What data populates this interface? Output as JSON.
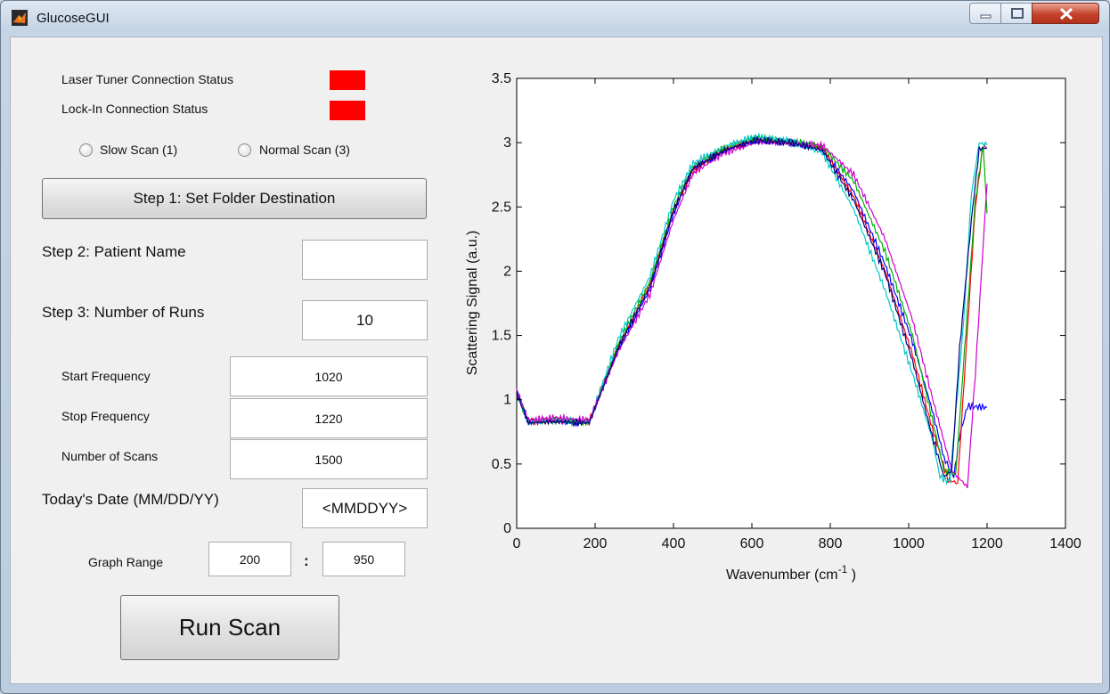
{
  "window": {
    "title": "GlucoseGUI",
    "controls": [
      "minimize-icon",
      "maximize-icon",
      "close-icon"
    ]
  },
  "status": {
    "laser_label": "Laser Tuner Connection Status",
    "lockin_label": "Lock-In Connection Status",
    "laser_color": "#ff0000",
    "lockin_color": "#ff0000"
  },
  "scan_mode": {
    "options": [
      "Slow Scan (1)",
      "Normal Scan (3)"
    ],
    "selected": null
  },
  "steps": {
    "step1_button": "Step 1: Set Folder Destination",
    "step2_label": "Step 2: Patient Name",
    "step2_value": "",
    "step3_label": "Step 3: Number of Runs",
    "step3_value": "10"
  },
  "params": {
    "start_label": "Start Frequency",
    "start_value": "1020",
    "stop_label": "Stop Frequency",
    "stop_value": "1220",
    "scans_label": "Number of Scans",
    "scans_value": "1500"
  },
  "date": {
    "label": "Today's Date (MM/DD/YY)",
    "value": "<MMDDYY>"
  },
  "range": {
    "label": "Graph Range",
    "from": "200",
    "separator": ":",
    "to": "950"
  },
  "run_button": "Run Scan",
  "chart_data": {
    "type": "line",
    "xlabel": "Wavenumber (cm-1 )",
    "xlabel_base": "Wavenumber (cm",
    "xlabel_sup": "-1",
    "xlabel_tail": " )",
    "ylabel": "Scattering Signal (a.u.)",
    "xlim": [
      0,
      1400
    ],
    "ylim": [
      0,
      3.5
    ],
    "xticks": [
      0,
      200,
      400,
      600,
      800,
      1000,
      1200,
      1400
    ],
    "yticks": [
      0,
      0.5,
      1,
      1.5,
      2,
      2.5,
      3,
      3.5
    ],
    "ytick_labels": [
      "0",
      "0.5",
      "1",
      "1.5",
      "2",
      "2.5",
      "3",
      "3.5"
    ],
    "series": [
      {
        "color": "#0000ff",
        "points": [
          [
            0,
            1.08
          ],
          [
            30,
            0.82
          ],
          [
            100,
            0.83
          ],
          [
            185,
            0.82
          ],
          [
            260,
            1.4
          ],
          [
            340,
            1.86
          ],
          [
            400,
            2.45
          ],
          [
            450,
            2.8
          ],
          [
            530,
            2.94
          ],
          [
            610,
            3.02
          ],
          [
            700,
            3.0
          ],
          [
            780,
            2.95
          ],
          [
            860,
            2.62
          ],
          [
            940,
            2.05
          ],
          [
            1010,
            1.45
          ],
          [
            1060,
            0.92
          ],
          [
            1090,
            0.55
          ],
          [
            1115,
            0.4
          ],
          [
            1130,
            0.72
          ],
          [
            1150,
            0.95
          ],
          [
            1200,
            0.94
          ]
        ]
      },
      {
        "color": "#ff0000",
        "points": [
          [
            0,
            1.05
          ],
          [
            30,
            0.83
          ],
          [
            100,
            0.84
          ],
          [
            185,
            0.83
          ],
          [
            260,
            1.42
          ],
          [
            340,
            1.9
          ],
          [
            400,
            2.48
          ],
          [
            450,
            2.78
          ],
          [
            530,
            2.95
          ],
          [
            610,
            3.03
          ],
          [
            700,
            3.0
          ],
          [
            780,
            2.96
          ],
          [
            860,
            2.58
          ],
          [
            940,
            2.0
          ],
          [
            1010,
            1.35
          ],
          [
            1060,
            0.78
          ],
          [
            1100,
            0.38
          ],
          [
            1125,
            0.35
          ],
          [
            1150,
            1.55
          ],
          [
            1170,
            2.5
          ],
          [
            1190,
            2.98
          ],
          [
            1200,
            2.96
          ]
        ]
      },
      {
        "color": "#00b000",
        "points": [
          [
            0,
            1.06
          ],
          [
            30,
            0.82
          ],
          [
            100,
            0.84
          ],
          [
            185,
            0.82
          ],
          [
            260,
            1.44
          ],
          [
            340,
            1.92
          ],
          [
            400,
            2.5
          ],
          [
            450,
            2.82
          ],
          [
            530,
            2.96
          ],
          [
            610,
            3.04
          ],
          [
            700,
            3.01
          ],
          [
            780,
            2.97
          ],
          [
            860,
            2.7
          ],
          [
            940,
            2.15
          ],
          [
            1010,
            1.5
          ],
          [
            1060,
            0.85
          ],
          [
            1090,
            0.45
          ],
          [
            1120,
            0.42
          ],
          [
            1150,
            1.7
          ],
          [
            1170,
            2.55
          ],
          [
            1190,
            2.98
          ],
          [
            1200,
            2.45
          ]
        ]
      },
      {
        "color": "#00c8c8",
        "points": [
          [
            0,
            1.04
          ],
          [
            30,
            0.83
          ],
          [
            100,
            0.85
          ],
          [
            185,
            0.83
          ],
          [
            260,
            1.48
          ],
          [
            340,
            1.96
          ],
          [
            400,
            2.55
          ],
          [
            450,
            2.84
          ],
          [
            530,
            2.97
          ],
          [
            610,
            3.05
          ],
          [
            700,
            3.01
          ],
          [
            780,
            2.92
          ],
          [
            860,
            2.48
          ],
          [
            940,
            1.85
          ],
          [
            1010,
            1.2
          ],
          [
            1060,
            0.7
          ],
          [
            1080,
            0.4
          ],
          [
            1105,
            0.36
          ],
          [
            1140,
            1.6
          ],
          [
            1160,
            2.6
          ],
          [
            1180,
            3.0
          ],
          [
            1200,
            2.98
          ]
        ]
      },
      {
        "color": "#d000d0",
        "points": [
          [
            0,
            1.07
          ],
          [
            30,
            0.84
          ],
          [
            100,
            0.86
          ],
          [
            185,
            0.84
          ],
          [
            260,
            1.38
          ],
          [
            340,
            1.82
          ],
          [
            400,
            2.4
          ],
          [
            450,
            2.76
          ],
          [
            530,
            2.92
          ],
          [
            610,
            3.0
          ],
          [
            700,
            2.99
          ],
          [
            780,
            2.98
          ],
          [
            860,
            2.75
          ],
          [
            940,
            2.25
          ],
          [
            1010,
            1.62
          ],
          [
            1060,
            1.02
          ],
          [
            1110,
            0.45
          ],
          [
            1150,
            0.32
          ],
          [
            1170,
            1.2
          ],
          [
            1190,
            2.2
          ],
          [
            1200,
            2.68
          ]
        ]
      },
      {
        "color": "#000080",
        "points": [
          [
            0,
            1.05
          ],
          [
            30,
            0.82
          ],
          [
            100,
            0.83
          ],
          [
            185,
            0.82
          ],
          [
            260,
            1.41
          ],
          [
            340,
            1.88
          ],
          [
            400,
            2.47
          ],
          [
            450,
            2.8
          ],
          [
            530,
            2.94
          ],
          [
            610,
            3.02
          ],
          [
            700,
            3.0
          ],
          [
            780,
            2.94
          ],
          [
            860,
            2.55
          ],
          [
            940,
            1.98
          ],
          [
            1010,
            1.3
          ],
          [
            1060,
            0.72
          ],
          [
            1090,
            0.4
          ],
          [
            1110,
            0.45
          ],
          [
            1130,
            1.4
          ],
          [
            1160,
            2.4
          ],
          [
            1180,
            2.95
          ],
          [
            1200,
            2.96
          ]
        ]
      }
    ]
  }
}
